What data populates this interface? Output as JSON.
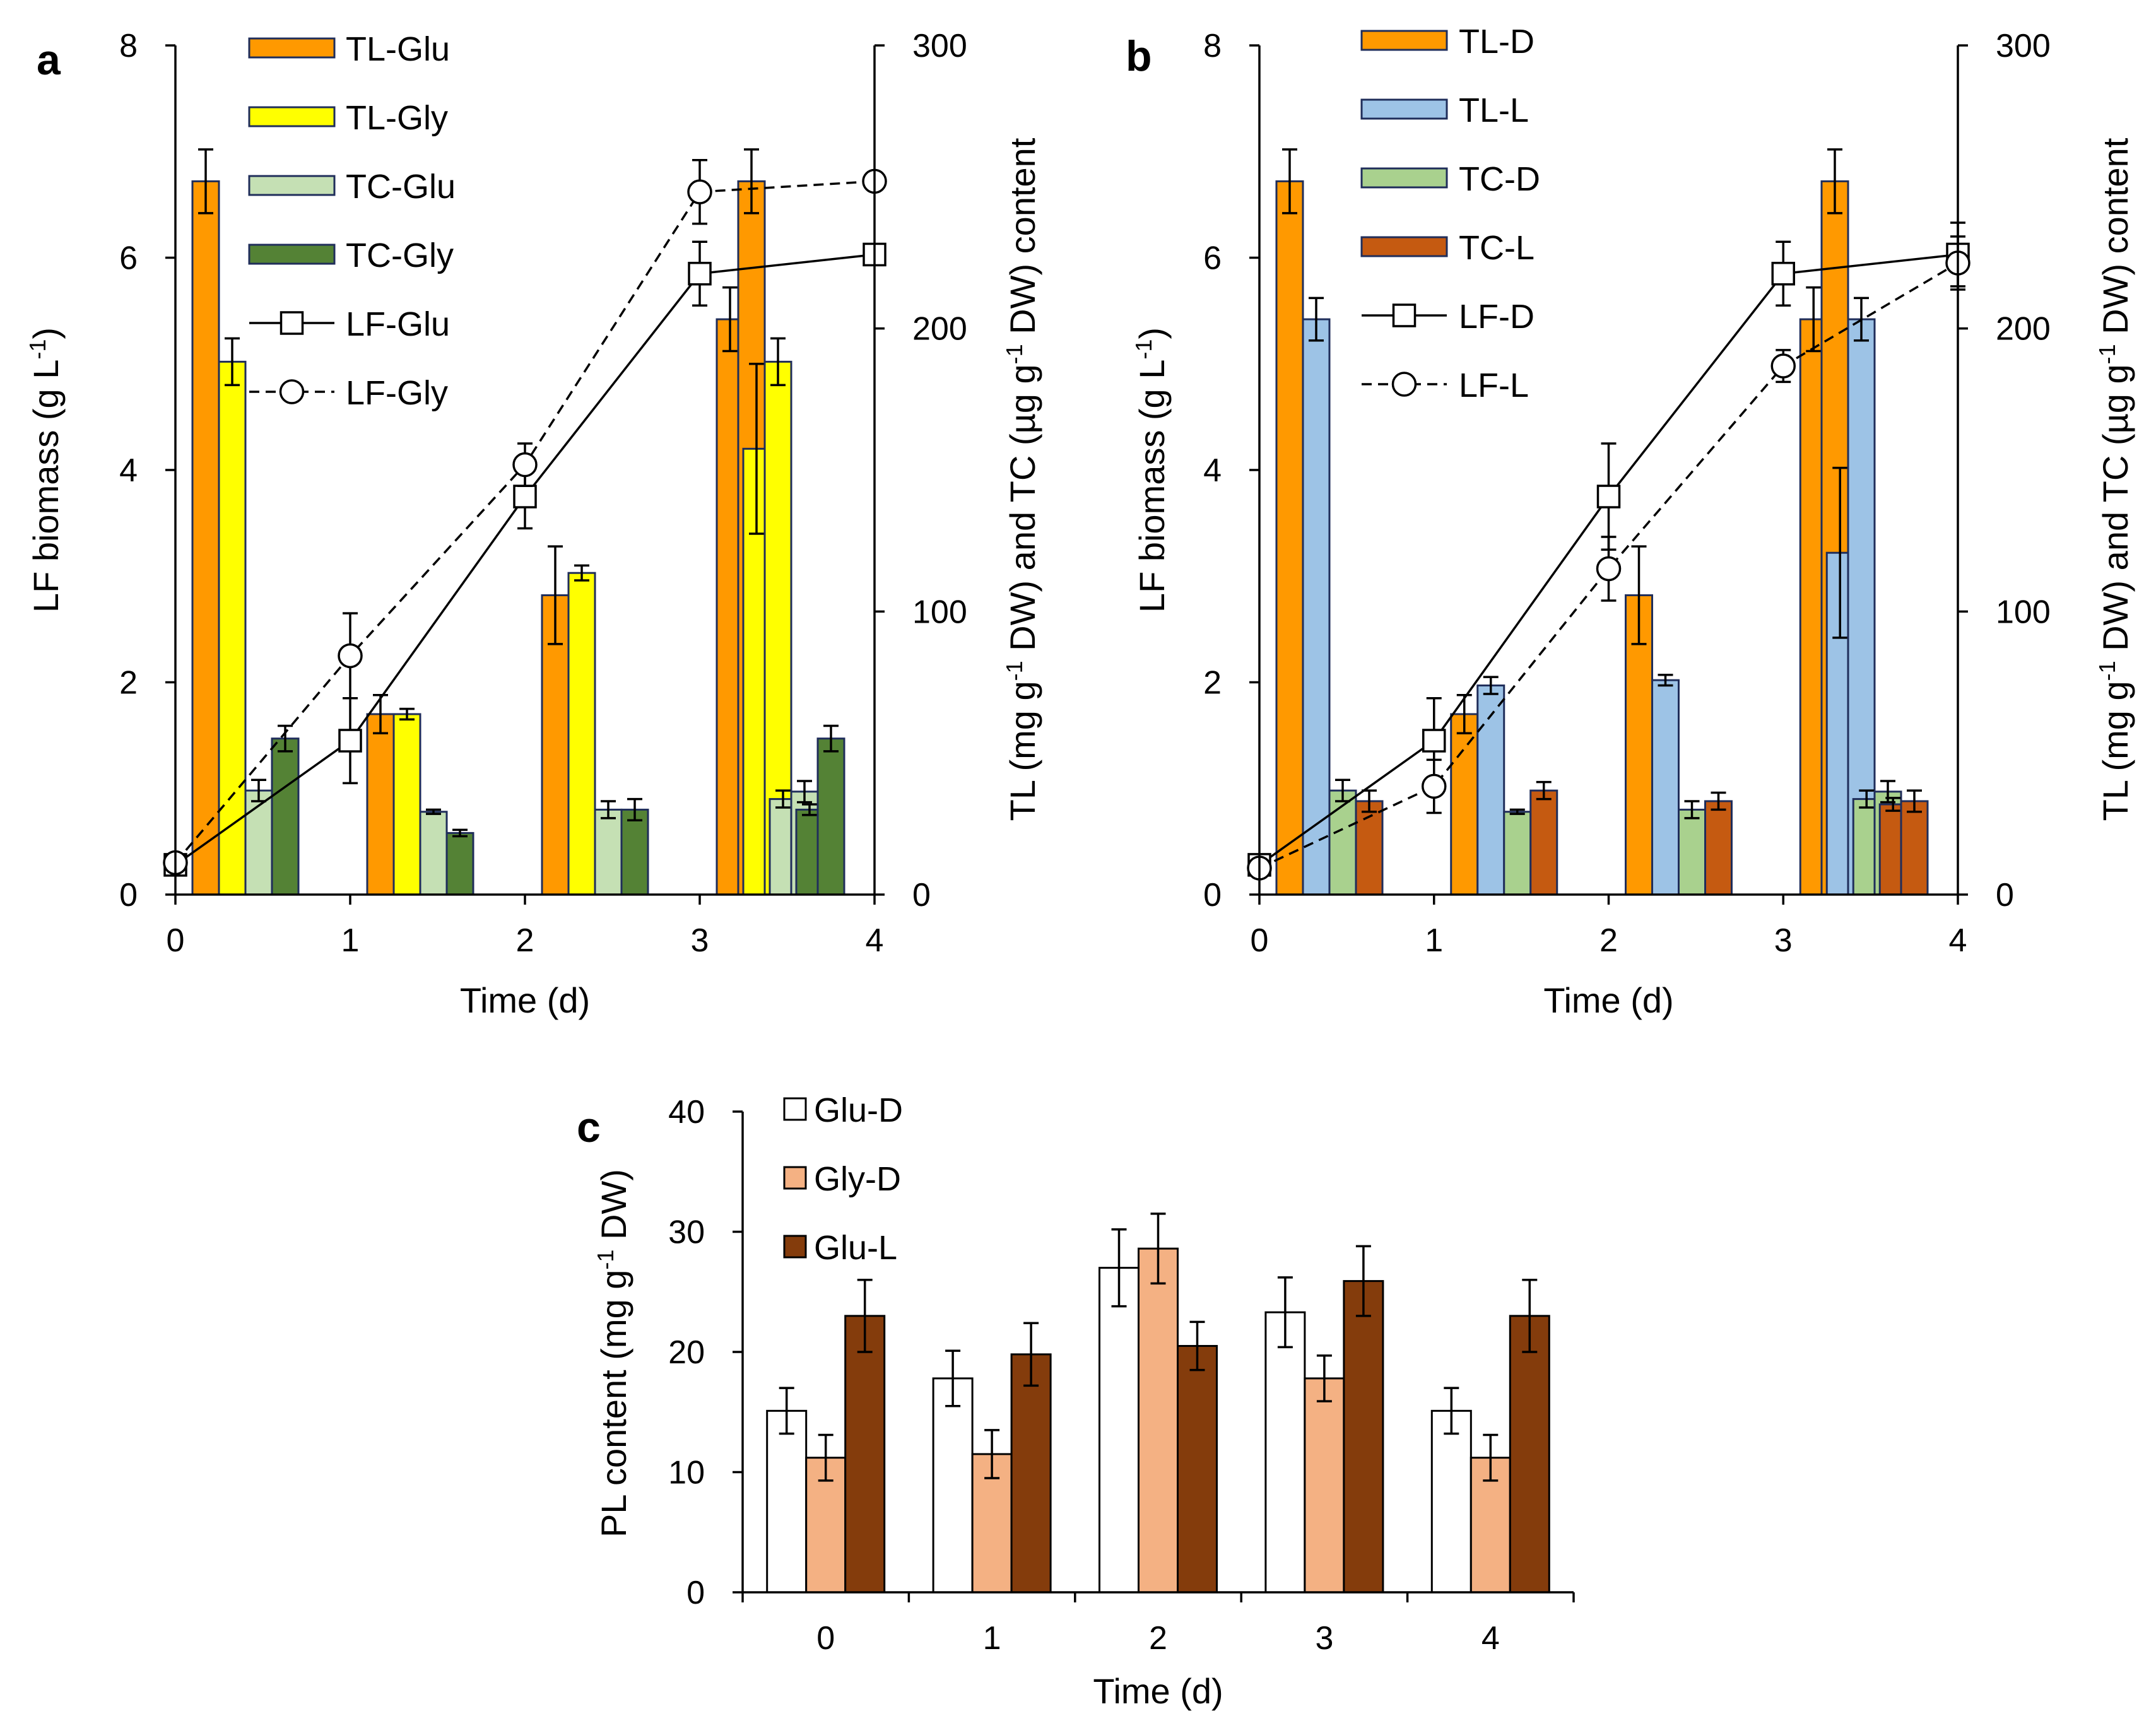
{
  "colors": {
    "TL-Glu": "#FF9900",
    "TL-Gly": "#FFFF00",
    "TC-Glu": "#C5E0B4",
    "TC-Gly": "#548235",
    "TL-D": "#FF9900",
    "TL-L": "#9DC3E6",
    "TC-D": "#A9D18E",
    "TC-L": "#C55A11",
    "Glu-D": "#FFFFFF",
    "Gly-D": "#F4B183",
    "Glu-L": "#843C0C",
    "bar_edge": "#1F2D5A"
  },
  "chart_data": [
    {
      "panel": "a",
      "type": "bar",
      "xlabel": "Time (d)",
      "ylabel_left_parts": [
        "LF biomass (g L",
        "-1",
        ")"
      ],
      "ylabel_right_parts": [
        "TL (mg g",
        "-1",
        " DW) and TC (µg g",
        "-1",
        " DW) content"
      ],
      "categories": [
        "0",
        "1",
        "2",
        "3",
        "4"
      ],
      "ylim_left": [
        0,
        8
      ],
      "yticks_left": [
        0,
        2,
        4,
        6,
        8
      ],
      "ylim_right": [
        0,
        300
      ],
      "yticks_right": [
        0,
        100,
        200,
        300
      ],
      "bar_series": [
        {
          "name": "TL-Glu",
          "axis": "left",
          "values": [
            6.72,
            1.7,
            2.82,
            5.42,
            6.72
          ],
          "err": [
            0.3,
            0.18,
            0.46,
            0.3,
            0.3
          ]
        },
        {
          "name": "TL-Gly",
          "axis": "left",
          "values": [
            5.02,
            1.7,
            3.03,
            4.2,
            5.02
          ],
          "err": [
            0.22,
            0.05,
            0.07,
            0.8,
            0.22
          ]
        },
        {
          "name": "TC-Glu",
          "axis": "left",
          "values": [
            0.98,
            0.78,
            0.8,
            0.9,
            0.97
          ],
          "err": [
            0.1,
            0.02,
            0.08,
            0.08,
            0.1
          ]
        },
        {
          "name": "TC-Gly",
          "axis": "left",
          "values": [
            1.47,
            0.58,
            0.8,
            0.8,
            1.47
          ],
          "err": [
            0.12,
            0.03,
            0.1,
            0.05,
            0.12
          ]
        }
      ],
      "line_series": [
        {
          "name": "LF-Glu",
          "marker": "square",
          "dash": "solid",
          "x": [
            0,
            1,
            2,
            3,
            4
          ],
          "y": [
            0.28,
            1.45,
            3.75,
            5.85,
            6.03
          ],
          "err": [
            0.05,
            0.4,
            0.3,
            0.3,
            0.05
          ]
        },
        {
          "name": "LF-Gly",
          "marker": "circle",
          "dash": "dashed",
          "x": [
            0,
            1,
            2,
            3,
            4
          ],
          "y": [
            0.3,
            2.25,
            4.05,
            6.62,
            6.72
          ],
          "err": [
            0.05,
            0.4,
            0.2,
            0.3,
            0.05
          ]
        }
      ]
    },
    {
      "panel": "b",
      "type": "bar",
      "xlabel": "Time (d)",
      "ylabel_left_parts": [
        "LF biomass (g L",
        "-1",
        ")"
      ],
      "ylabel_right_parts": [
        "TL (mg g",
        "-1",
        " DW) and TC (µg g",
        "-1",
        " DW) content"
      ],
      "categories": [
        "0",
        "1",
        "2",
        "3",
        "4"
      ],
      "ylim_left": [
        0,
        8
      ],
      "yticks_left": [
        0,
        2,
        4,
        6,
        8
      ],
      "ylim_right": [
        0,
        300
      ],
      "yticks_right": [
        0,
        100,
        200,
        300
      ],
      "bar_series": [
        {
          "name": "TL-D",
          "axis": "left",
          "values": [
            6.72,
            1.7,
            2.82,
            5.42,
            6.72
          ],
          "err": [
            0.3,
            0.18,
            0.46,
            0.3,
            0.3
          ]
        },
        {
          "name": "TL-L",
          "axis": "left",
          "values": [
            5.42,
            1.97,
            2.02,
            3.22,
            5.42
          ],
          "err": [
            0.2,
            0.08,
            0.05,
            0.8,
            0.2
          ]
        },
        {
          "name": "TC-D",
          "axis": "left",
          "values": [
            0.98,
            0.78,
            0.8,
            0.9,
            0.97
          ],
          "err": [
            0.1,
            0.02,
            0.08,
            0.08,
            0.1
          ]
        },
        {
          "name": "TC-L",
          "axis": "left",
          "values": [
            0.88,
            0.98,
            0.88,
            0.85,
            0.88
          ],
          "err": [
            0.1,
            0.08,
            0.08,
            0.06,
            0.1
          ]
        }
      ],
      "line_series": [
        {
          "name": "LF-D",
          "marker": "square",
          "dash": "solid",
          "x": [
            0,
            1,
            2,
            3,
            4
          ],
          "y": [
            0.28,
            1.45,
            3.75,
            5.85,
            6.03
          ],
          "err": [
            0.05,
            0.4,
            0.5,
            0.3,
            0.3
          ]
        },
        {
          "name": "LF-L",
          "marker": "circle",
          "dash": "dashed",
          "x": [
            0,
            1,
            2,
            3,
            4
          ],
          "y": [
            0.25,
            1.02,
            3.07,
            4.98,
            5.95
          ],
          "err": [
            0.05,
            0.25,
            0.3,
            0.15,
            0.25
          ]
        }
      ]
    },
    {
      "panel": "c",
      "type": "bar",
      "xlabel": "Time (d)",
      "ylabel_left_parts": [
        "PL content (mg g",
        "-1",
        " DW)"
      ],
      "categories": [
        "0",
        "1",
        "2",
        "3",
        "4"
      ],
      "ylim_left": [
        0,
        40
      ],
      "yticks_left": [
        0,
        10,
        20,
        30,
        40
      ],
      "bar_series": [
        {
          "name": "Glu-D",
          "axis": "left",
          "values": [
            15.1,
            17.8,
            27.0,
            23.3,
            15.1
          ],
          "err": [
            1.9,
            2.3,
            3.2,
            2.9,
            1.9
          ]
        },
        {
          "name": "Gly-D",
          "axis": "left",
          "values": [
            11.2,
            11.5,
            28.6,
            17.8,
            11.2
          ],
          "err": [
            1.9,
            2.0,
            2.9,
            1.9,
            1.9
          ]
        },
        {
          "name": "Glu-L",
          "axis": "left",
          "values": [
            23.0,
            19.8,
            20.5,
            25.9,
            23.0
          ],
          "err": [
            3.0,
            2.6,
            2.0,
            2.9,
            3.0
          ]
        }
      ],
      "line_series": []
    }
  ]
}
